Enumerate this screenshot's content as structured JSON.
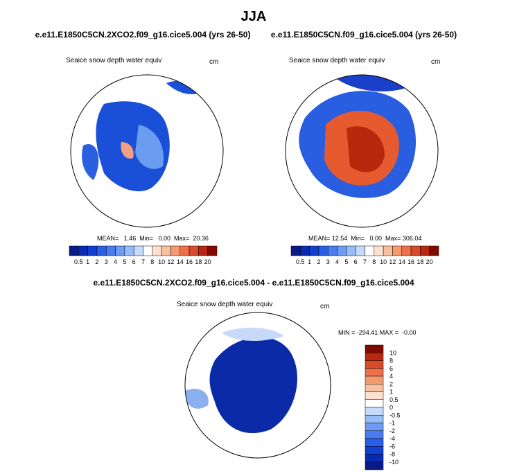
{
  "title": "JJA",
  "panels": [
    {
      "title": "e.e11.E1850C5CN.2XCO2.f09_g16.cice5.004 (yrs 26-50)",
      "subtitle": "Seaice snow depth water equiv",
      "units": "cm",
      "stats": "MEAN=   1.46  Min=   0.00  Max=  20.36"
    },
    {
      "title": "e.e11.E1850C5CN.f09_g16.cice5.004 (yrs 26-50)",
      "subtitle": "Seaice snow depth water equiv",
      "units": "cm",
      "stats": "MEAN= 12.54  Min=   0.00  Max= 306.04"
    }
  ],
  "colorbar_labels": [
    "0.5",
    "1",
    "2",
    "3",
    "4",
    "5",
    "6",
    "7",
    "8",
    "10",
    "12",
    "14",
    "16",
    "18",
    "20"
  ],
  "difference": {
    "title": "e.e11.E1850C5CN.2XCO2.f09_g16.cice5.004 - e.e11.E1850C5CN.f09_g16.cice5.004",
    "subtitle": "Seaice snow depth water equiv",
    "units": "cm",
    "stats": "MIN = -294.41 MAX =  -0.00",
    "colorbar_labels": [
      "10",
      "8",
      "6",
      "4",
      "2",
      "1",
      "0.5",
      "0",
      "-0.5",
      "-1",
      "-2",
      "-4",
      "-6",
      "-8",
      "-10"
    ]
  }
}
